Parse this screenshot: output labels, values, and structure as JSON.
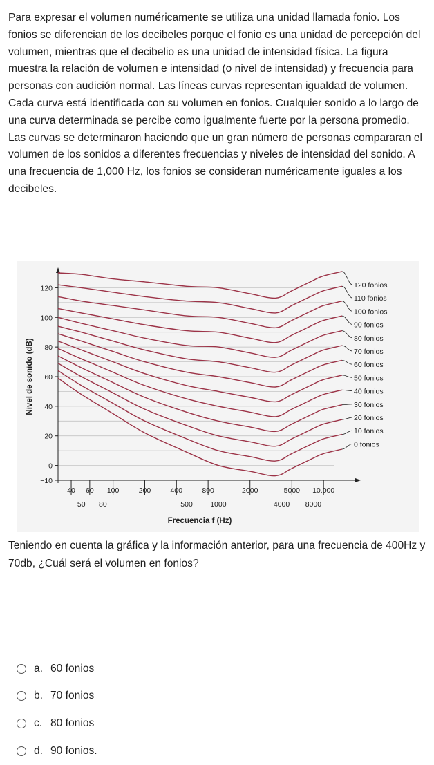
{
  "intro": "Para expresar el volumen numéricamente se utiliza una unidad llamada fonio. Los fonios se diferencian de los decibeles porque el fonio es una unidad de percepción del volumen, mientras que el decibelio es una unidad de intensidad física. La figura muestra la relación de volumen e intensidad (o nivel de intensidad) y frecuencia para personas con audición normal. Las líneas curvas representan igualdad de volumen. Cada curva está identificada con su volumen en fonios. Cualquier sonido a lo largo de una curva determinada se percibe como igualmente fuerte por la persona promedio. Las curvas se determinaron haciendo que un gran número de personas compararan el volumen de los sonidos a diferentes frecuencias y niveles de intensidad del sonido. A una frecuencia de 1,000 Hz, los fonios se consideran numéricamente iguales a los decibeles.",
  "chart_data": {
    "type": "line",
    "title": "",
    "xlabel": "Frecuencia f (Hz)",
    "ylabel": "Nivel de sonido (dB)",
    "x_scale": "log",
    "xlim": [
      30,
      20000
    ],
    "ylim": [
      -10,
      130
    ],
    "x_ticks_upper": [
      "40",
      "60",
      "100",
      "200",
      "400",
      "800",
      "2000",
      "5000",
      "10.000"
    ],
    "x_ticks_upper_values": [
      40,
      60,
      100,
      200,
      400,
      800,
      2000,
      5000,
      10000
    ],
    "x_ticks_lower": [
      "50",
      "80",
      "500",
      "1000",
      "4000",
      "8000"
    ],
    "x_ticks_lower_values": [
      50,
      80,
      500,
      1000,
      4000,
      8000
    ],
    "y_ticks": [
      "120",
      "100",
      "80",
      "60",
      "40",
      "20",
      "0",
      "−10"
    ],
    "y_ticks_values": [
      120,
      100,
      80,
      60,
      40,
      20,
      0,
      -10
    ],
    "x": [
      30,
      50,
      100,
      200,
      500,
      1000,
      2000,
      3500,
      5000,
      8000,
      10000,
      15000
    ],
    "series": [
      {
        "name": "120 fonios",
        "values": [
          130,
          129,
          126,
          124,
          121,
          120,
          116,
          113,
          118,
          125,
          128,
          131
        ]
      },
      {
        "name": "110 fonios",
        "values": [
          122,
          120,
          117,
          114,
          111,
          110,
          106,
          103,
          108,
          115,
          118,
          121
        ]
      },
      {
        "name": "100 fonios",
        "values": [
          114,
          111,
          108,
          105,
          101,
          100,
          96,
          93,
          98,
          105,
          108,
          111
        ]
      },
      {
        "name": "90 fonios",
        "values": [
          106,
          103,
          99,
          95,
          91,
          90,
          86,
          83,
          88,
          95,
          98,
          101
        ]
      },
      {
        "name": "80 fonios",
        "values": [
          100,
          96,
          91,
          86,
          81,
          80,
          76,
          73,
          78,
          85,
          88,
          91
        ]
      },
      {
        "name": "70 fonios",
        "values": [
          94,
          90,
          84,
          78,
          72,
          70,
          66,
          63,
          68,
          75,
          78,
          81
        ]
      },
      {
        "name": "60 fonios",
        "values": [
          89,
          84,
          77,
          70,
          63,
          60,
          56,
          53,
          58,
          65,
          68,
          71
        ]
      },
      {
        "name": "50 fonios",
        "values": [
          84,
          78,
          70,
          62,
          54,
          50,
          46,
          43,
          48,
          55,
          58,
          61
        ]
      },
      {
        "name": "40 fonios",
        "values": [
          79,
          72,
          63,
          54,
          45,
          40,
          36,
          33,
          38,
          45,
          48,
          51
        ]
      },
      {
        "name": "30 fonios",
        "values": [
          74,
          66,
          56,
          46,
          36,
          30,
          26,
          23,
          28,
          35,
          38,
          41
        ]
      },
      {
        "name": "20 fonios",
        "values": [
          69,
          60,
          49,
          38,
          27,
          20,
          16,
          13,
          18,
          25,
          28,
          31
        ]
      },
      {
        "name": "10 fonios",
        "values": [
          64,
          54,
          42,
          30,
          18,
          10,
          6,
          3,
          8,
          15,
          18,
          21
        ]
      },
      {
        "name": "0 fonios",
        "values": [
          59,
          48,
          35,
          22,
          9,
          0,
          -4,
          -7,
          -2,
          5,
          8,
          11
        ]
      }
    ],
    "grid": "horizontal",
    "legend": "curve labels at right end",
    "colors": {
      "curve": "#9c3347",
      "grid": "#bbbbbb",
      "axis": "#222222"
    }
  },
  "question": "Teniendo en cuenta la gráfica y la  información anterior, para una frecuencia de 400Hz y 70db, ¿Cuál será el volumen en fonios?",
  "options": [
    {
      "letter": "a.",
      "text": "60 fonios"
    },
    {
      "letter": "b.",
      "text": "70 fonios"
    },
    {
      "letter": "c.",
      "text": "80 fonios"
    },
    {
      "letter": "d.",
      "text": "90 fonios."
    }
  ]
}
